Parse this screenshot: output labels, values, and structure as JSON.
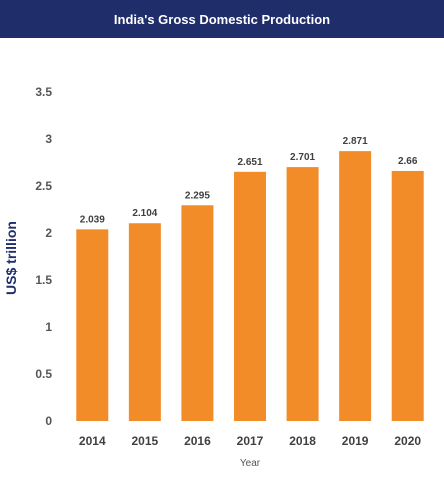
{
  "header": {
    "title": "India's Gross Domestic Production"
  },
  "colors": {
    "header_bg": "#1f2d6b",
    "bar": "#f28c28",
    "axis_label": "#1f2d6b"
  },
  "chart_data": {
    "type": "bar",
    "title": "India's Gross Domestic Production",
    "xlabel": "Year",
    "ylabel": "US$ trillion",
    "categories": [
      "2014",
      "2015",
      "2016",
      "2017",
      "2018",
      "2019",
      "2020"
    ],
    "values": [
      2.039,
      2.104,
      2.295,
      2.651,
      2.701,
      2.871,
      2.66
    ],
    "data_labels": [
      "2.039",
      "2.104",
      "2.295",
      "2.651",
      "2.701",
      "2.871",
      "2.66"
    ],
    "ylim": [
      0,
      3.5
    ],
    "yticks": [
      "0",
      "0.5",
      "1",
      "1.5",
      "2",
      "2.5",
      "3",
      "3.5"
    ],
    "grid": false,
    "legend": "none"
  }
}
